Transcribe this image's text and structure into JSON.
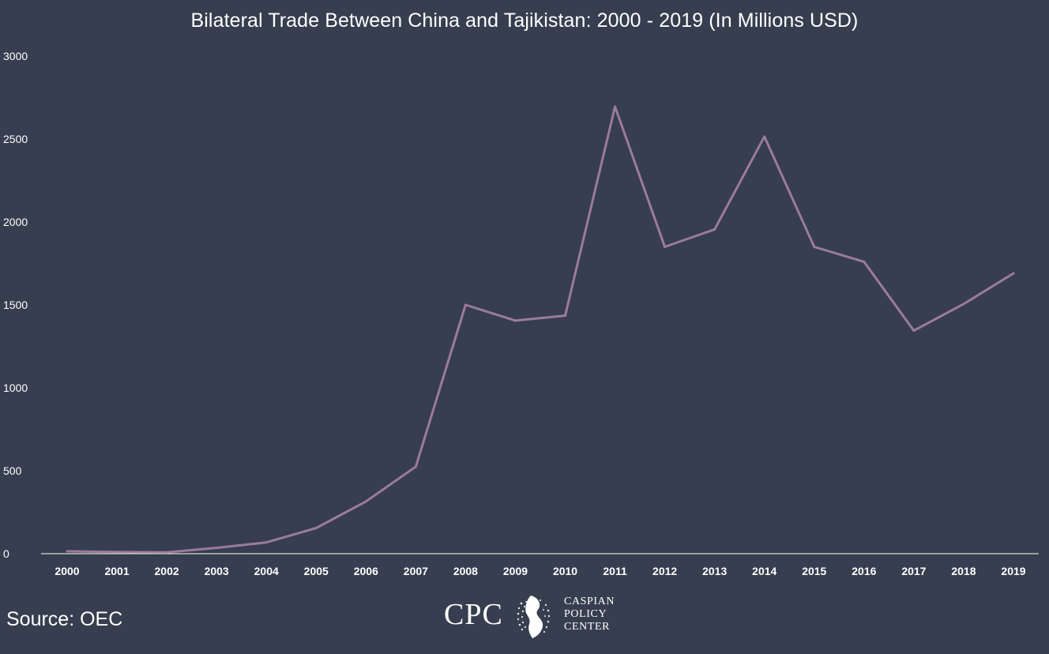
{
  "title": "Bilateral Trade Between China and Tajikistan: 2000 - 2019 (In Millions USD)",
  "source": "Source: OEC",
  "logo": {
    "abbr": "CPC",
    "line1": "CASPIAN",
    "line2": "POLICY",
    "line3": "CENTER"
  },
  "colors": {
    "background": "#363e4f",
    "line": "#9c7b99",
    "axis": "#ffffff",
    "text": "#ffffff"
  },
  "chart_data": {
    "type": "line",
    "title": "Bilateral Trade Between China and Tajikistan: 2000 - 2019 (In Millions USD)",
    "xlabel": "",
    "ylabel": "",
    "x": [
      "2000",
      "2001",
      "2002",
      "2003",
      "2004",
      "2005",
      "2006",
      "2007",
      "2008",
      "2009",
      "2010",
      "2011",
      "2012",
      "2013",
      "2014",
      "2015",
      "2016",
      "2017",
      "2018",
      "2019"
    ],
    "series": [
      {
        "values": [
          15,
          10,
          8,
          35,
          68,
          155,
          315,
          525,
          1500,
          1405,
          1435,
          2695,
          1850,
          1955,
          2515,
          1850,
          1760,
          1345,
          1505,
          1690
        ]
      }
    ],
    "ylim": [
      0,
      3000
    ],
    "yticks": [
      "0",
      "500",
      "1000",
      "1500",
      "2000",
      "2500",
      "3000"
    ],
    "grid": false,
    "legend": "none"
  }
}
